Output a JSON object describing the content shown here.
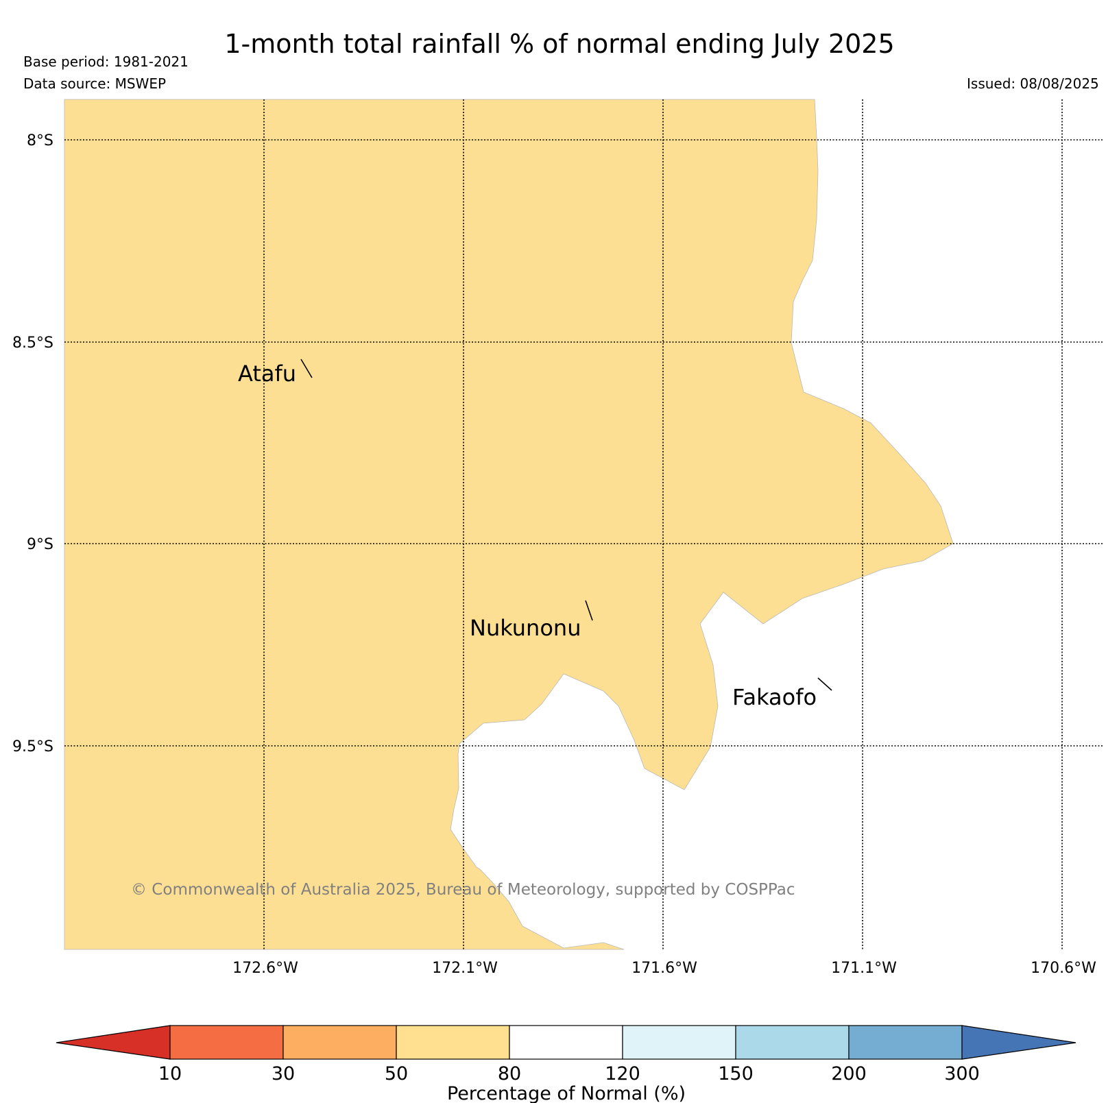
{
  "title": "1-month total rainfall % of normal ending July 2025",
  "base_period": "Base period: 1981-2021",
  "data_source": "Data source: MSWEP",
  "issued": "Issued: 08/08/2025",
  "map": {
    "latitudes": [
      "8°S",
      "8.5°S",
      "9°S",
      "9.5°S"
    ],
    "longitudes": [
      "172.6°W",
      "172.1°W",
      "171.6°W",
      "171.1°W",
      "170.6°W"
    ],
    "places": [
      "Atafu",
      "Nukunonu",
      "Fakaofo"
    ],
    "copyright": "© Commonwealth of Australia 2025, Bureau of Meteorology, supported by COSPPac",
    "fill_color_50_80": "#fddf93",
    "fill_color_80_120": "#ffffff"
  },
  "colorbar": {
    "title": "Percentage of Normal (%)",
    "ticks": [
      "10",
      "30",
      "50",
      "80",
      "120",
      "150",
      "200",
      "300"
    ],
    "colors": [
      "#d73027",
      "#f46d43",
      "#fdae61",
      "#fee090",
      "#ffffff",
      "#e0f3f8",
      "#abd9e9",
      "#74add1",
      "#4575b4"
    ]
  }
}
